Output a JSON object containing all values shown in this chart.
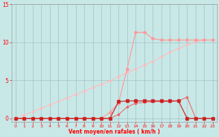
{
  "xlabel": "Vent moyen/en rafales ( km/h )",
  "xlim_min": -0.5,
  "xlim_max": 23.5,
  "ylim_min": -0.5,
  "ylim_max": 15,
  "yticks": [
    0,
    5,
    10,
    15
  ],
  "xticks": [
    0,
    1,
    2,
    3,
    4,
    5,
    6,
    7,
    8,
    9,
    10,
    11,
    12,
    13,
    14,
    15,
    16,
    17,
    18,
    19,
    20,
    21,
    22,
    23
  ],
  "bg_color": "#c8e8e8",
  "grid_color": "#a0c0c0",
  "x": [
    0,
    1,
    2,
    3,
    4,
    5,
    6,
    7,
    8,
    9,
    10,
    11,
    12,
    13,
    14,
    15,
    16,
    17,
    18,
    19,
    20,
    21,
    22,
    23
  ],
  "line_diag_y": [
    0,
    0.45,
    0.9,
    1.35,
    1.8,
    2.25,
    2.7,
    3.15,
    3.6,
    4.05,
    4.5,
    4.95,
    5.5,
    6.0,
    6.5,
    7.0,
    7.5,
    8.1,
    8.7,
    9.2,
    9.7,
    10.1,
    10.3,
    10.3
  ],
  "line_diag_color": "#ffbbbb",
  "line_peak_y": [
    0,
    0,
    0,
    0,
    0,
    0,
    0,
    0,
    0,
    0,
    0,
    0.8,
    2.0,
    6.5,
    11.3,
    11.3,
    10.5,
    10.3,
    10.3,
    10.3,
    10.3,
    10.3,
    10.3,
    10.3
  ],
  "line_peak_color": "#ff9999",
  "line_dark_y": [
    0,
    0,
    0,
    0,
    0,
    0,
    0,
    0,
    0,
    0,
    0,
    0,
    2.2,
    2.3,
    2.3,
    2.3,
    2.3,
    2.3,
    2.3,
    2.3,
    0,
    0,
    0,
    0
  ],
  "line_dark_color": "#cc2222",
  "line_med_y": [
    0,
    0,
    0,
    0,
    0,
    0,
    0,
    0,
    0,
    0,
    0,
    0,
    0.5,
    1.5,
    2.0,
    2.1,
    2.2,
    2.2,
    2.2,
    2.3,
    2.8,
    0,
    0,
    0
  ],
  "line_med_color": "#ee6666"
}
